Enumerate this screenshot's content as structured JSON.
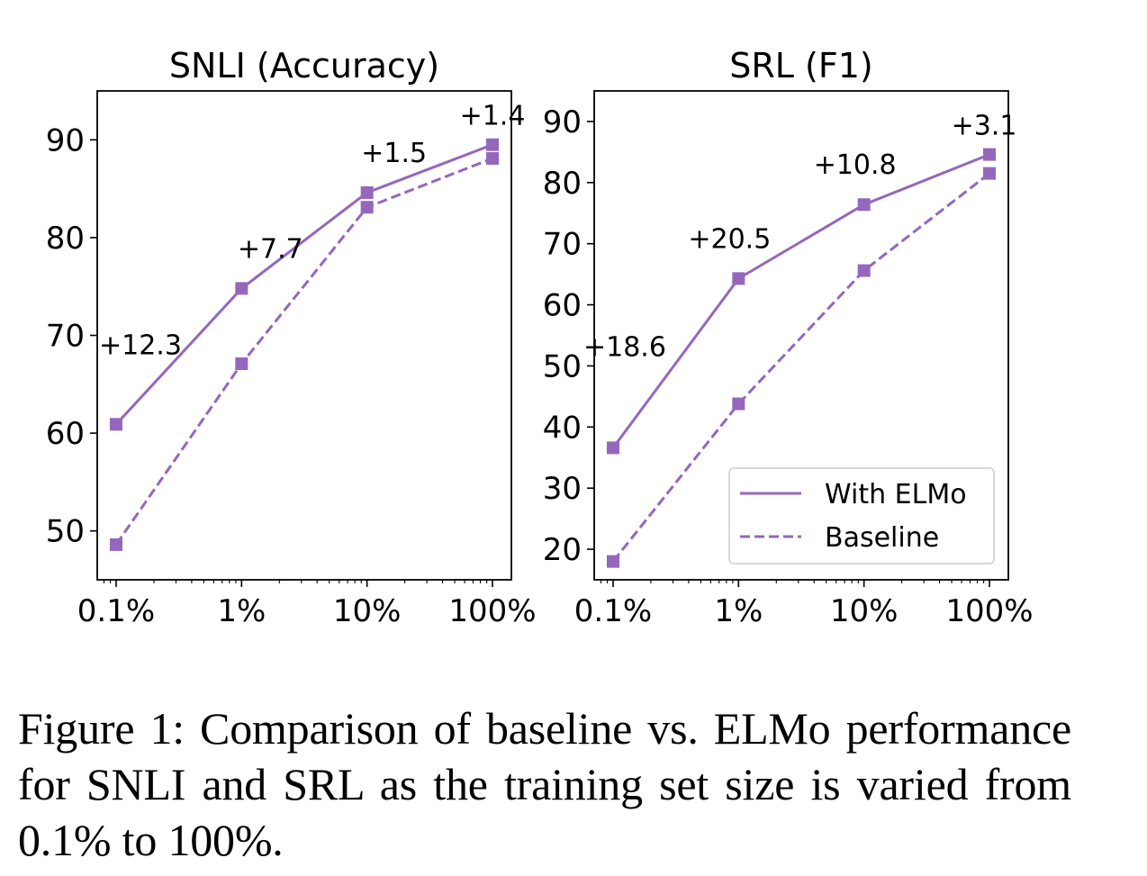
{
  "chart_data": [
    {
      "type": "line",
      "title": "SNLI (Accuracy)",
      "xlabel": "",
      "ylabel": "",
      "xscale": "log",
      "x": [
        0.1,
        1,
        10,
        100
      ],
      "x_tick_labels": [
        "0.1%",
        "1%",
        "10%",
        "100%"
      ],
      "xlim": [
        0.0707,
        141.5
      ],
      "ylim": [
        45,
        95
      ],
      "y_ticks": [
        50,
        60,
        70,
        80,
        90
      ],
      "y_tick_labels": [
        "50",
        "60",
        "70",
        "80",
        "90"
      ],
      "grid": false,
      "series": [
        {
          "name": "With ELMo",
          "style": "solid",
          "marker": "square",
          "color": "#9467bd",
          "values": [
            60.9,
            74.8,
            84.6,
            89.5
          ]
        },
        {
          "name": "Baseline",
          "style": "dashed",
          "marker": "square",
          "color": "#9467bd",
          "values": [
            48.6,
            67.1,
            83.1,
            88.1
          ]
        }
      ],
      "annotations": [
        {
          "text": "+12.3",
          "x": 0.1
        },
        {
          "text": "+7.7",
          "x": 1
        },
        {
          "text": "+1.5",
          "x": 10
        },
        {
          "text": "+1.4",
          "x": 100
        }
      ],
      "legend": null
    },
    {
      "type": "line",
      "title": "SRL (F1)",
      "xlabel": "",
      "ylabel": "",
      "xscale": "log",
      "x": [
        0.1,
        1,
        10,
        100
      ],
      "x_tick_labels": [
        "0.1%",
        "1%",
        "10%",
        "100%"
      ],
      "xlim": [
        0.0707,
        141.5
      ],
      "ylim": [
        15,
        95
      ],
      "y_ticks": [
        20,
        30,
        40,
        50,
        60,
        70,
        80,
        90
      ],
      "y_tick_labels": [
        "20",
        "30",
        "40",
        "50",
        "60",
        "70",
        "80",
        "90"
      ],
      "grid": false,
      "series": [
        {
          "name": "With ELMo",
          "style": "solid",
          "marker": "square",
          "color": "#9467bd",
          "values": [
            36.6,
            64.3,
            76.4,
            84.6
          ]
        },
        {
          "name": "Baseline",
          "style": "dashed",
          "marker": "square",
          "color": "#9467bd",
          "values": [
            18.0,
            43.8,
            65.6,
            81.5
          ]
        }
      ],
      "annotations": [
        {
          "text": "+18.6",
          "x": 0.1
        },
        {
          "text": "+20.5",
          "x": 1
        },
        {
          "text": "+10.8",
          "x": 10
        },
        {
          "text": "+3.1",
          "x": 100
        }
      ],
      "legend": {
        "placement": "lower-right",
        "entries": [
          "With ELMo",
          "Baseline"
        ]
      }
    }
  ],
  "caption": "Figure 1: Comparison of baseline vs. ELMo performance for SNLI and SRL as the training set size is varied from 0.1% to 100%."
}
